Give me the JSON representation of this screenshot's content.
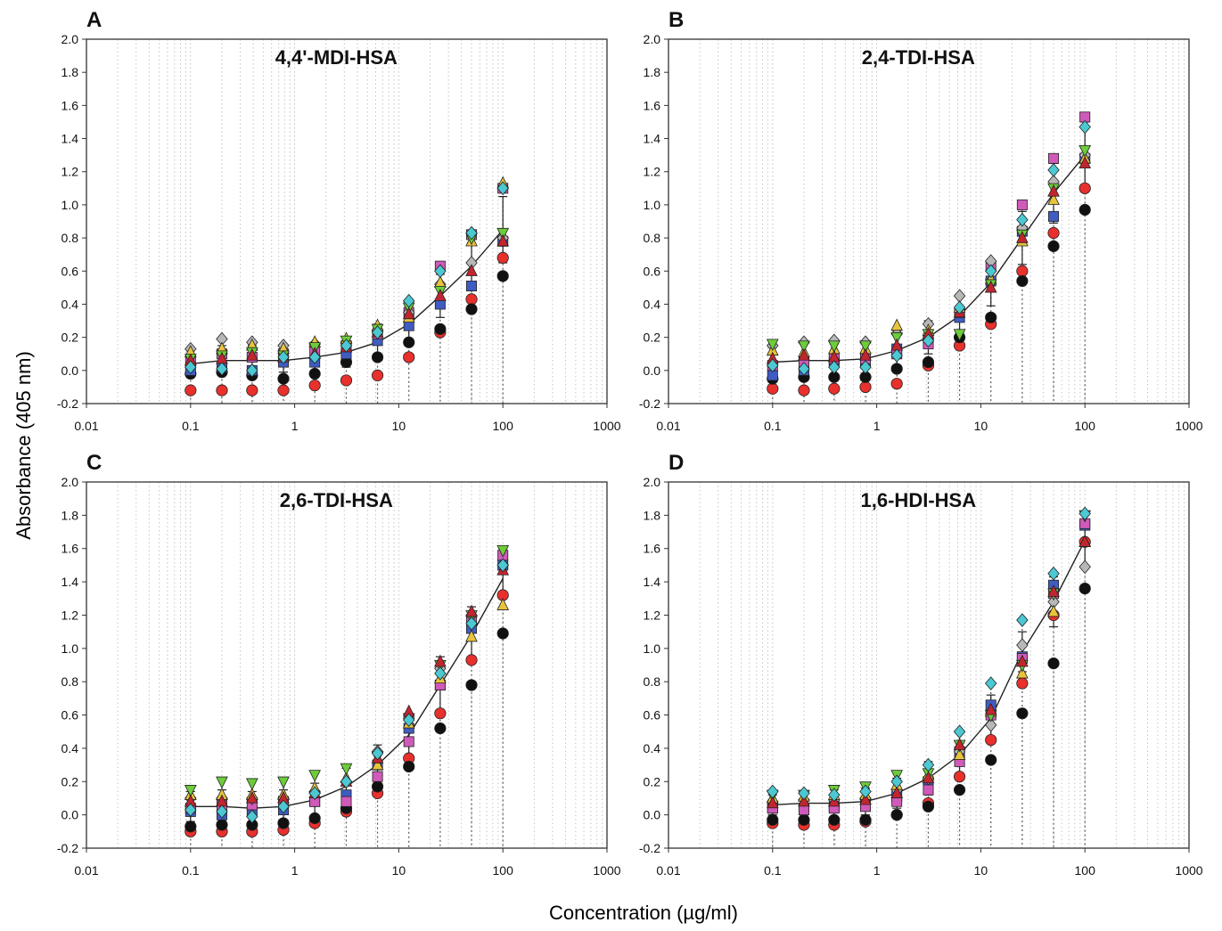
{
  "figure": {
    "ylabel": "Absorbance (405 nm)",
    "xlabel": "Concentration (µg/ml)"
  },
  "chart_data": [
    {
      "panel": "A",
      "type": "scatter",
      "title": "4,4'-MDI-HSA",
      "xscale": "log",
      "xlim": [
        0.01,
        1000
      ],
      "ylim": [
        -0.2,
        2.0
      ],
      "xticks": [
        "0.01",
        "0.1",
        "1",
        "10",
        "100",
        "1000"
      ],
      "yticks": [
        "-0.2",
        "0.0",
        "0.2",
        "0.4",
        "0.6",
        "0.8",
        "1.0",
        "1.2",
        "1.4",
        "1.6",
        "1.8",
        "2.0"
      ],
      "x": [
        0.1,
        0.2,
        0.39,
        0.78,
        1.56,
        3.13,
        6.25,
        12.5,
        25,
        50,
        100
      ],
      "mean": {
        "y": [
          0.04,
          0.06,
          0.06,
          0.06,
          0.08,
          0.11,
          0.17,
          0.28,
          0.45,
          0.63,
          0.85
        ],
        "err": [
          0.08,
          0.09,
          0.09,
          0.07,
          0.09,
          0.09,
          0.11,
          0.11,
          0.13,
          0.14,
          0.2
        ]
      },
      "series": [
        {
          "marker": "circle",
          "color": "#e8302c",
          "values": [
            -0.12,
            -0.12,
            -0.12,
            -0.12,
            -0.09,
            -0.06,
            -0.03,
            0.08,
            0.23,
            0.43,
            0.68
          ]
        },
        {
          "marker": "circle",
          "color": "#111111",
          "values": [
            -0.02,
            -0.01,
            -0.03,
            -0.05,
            -0.02,
            0.05,
            0.08,
            0.17,
            0.25,
            0.37,
            0.57
          ]
        },
        {
          "marker": "square",
          "color": "#3f5cc2",
          "values": [
            0.0,
            0.02,
            0.0,
            0.05,
            0.05,
            0.1,
            0.18,
            0.27,
            0.4,
            0.51,
            0.78
          ]
        },
        {
          "marker": "square",
          "color": "#d05aba",
          "values": [
            0.05,
            0.1,
            0.08,
            0.1,
            0.12,
            0.15,
            0.22,
            0.35,
            0.63,
            0.82,
            1.1
          ]
        },
        {
          "marker": "diamond",
          "color": "#b8b8b8",
          "values": [
            0.13,
            0.19,
            0.17,
            0.15,
            0.16,
            0.17,
            0.24,
            0.35,
            0.52,
            0.65,
            0.8
          ]
        },
        {
          "marker": "triangle-up",
          "color": "#e8c43c",
          "values": [
            0.11,
            0.13,
            0.15,
            0.13,
            0.17,
            0.19,
            0.27,
            0.32,
            0.53,
            0.78,
            1.13
          ]
        },
        {
          "marker": "triangle-down",
          "color": "#6ccc3a",
          "values": [
            0.07,
            0.09,
            0.11,
            0.09,
            0.14,
            0.18,
            0.25,
            0.38,
            0.48,
            0.8,
            0.83
          ]
        },
        {
          "marker": "triangle-up",
          "color": "#c3252f",
          "values": [
            0.06,
            0.07,
            0.09,
            0.08,
            0.1,
            0.14,
            0.23,
            0.34,
            0.45,
            0.6,
            0.78
          ]
        },
        {
          "marker": "diamond",
          "color": "#4cc8d2",
          "values": [
            0.02,
            0.01,
            0.0,
            0.08,
            0.08,
            0.15,
            0.23,
            0.42,
            0.6,
            0.83,
            1.1
          ]
        }
      ]
    },
    {
      "panel": "B",
      "type": "scatter",
      "title": "2,4-TDI-HSA",
      "xscale": "log",
      "xlim": [
        0.01,
        1000
      ],
      "ylim": [
        -0.2,
        2.0
      ],
      "xticks": [
        "0.01",
        "0.1",
        "1",
        "10",
        "100",
        "1000"
      ],
      "yticks": [
        "-0.2",
        "0.0",
        "0.2",
        "0.4",
        "0.6",
        "0.8",
        "1.0",
        "1.2",
        "1.4",
        "1.6",
        "1.8",
        "2.0"
      ],
      "x": [
        0.1,
        0.2,
        0.39,
        0.78,
        1.56,
        3.13,
        6.25,
        12.5,
        25,
        50,
        100
      ],
      "mean": {
        "y": [
          0.05,
          0.06,
          0.06,
          0.07,
          0.12,
          0.2,
          0.33,
          0.53,
          0.8,
          1.07,
          1.3
        ],
        "err": [
          0.09,
          0.1,
          0.1,
          0.1,
          0.12,
          0.1,
          0.13,
          0.14,
          0.16,
          0.18,
          0.2
        ]
      },
      "series": [
        {
          "marker": "circle",
          "color": "#e8302c",
          "values": [
            -0.11,
            -0.12,
            -0.11,
            -0.1,
            -0.08,
            0.03,
            0.15,
            0.28,
            0.6,
            0.83,
            1.1
          ]
        },
        {
          "marker": "circle",
          "color": "#111111",
          "values": [
            -0.05,
            -0.04,
            -0.04,
            -0.04,
            0.01,
            0.05,
            0.2,
            0.32,
            0.54,
            0.75,
            0.97
          ]
        },
        {
          "marker": "square",
          "color": "#3f5cc2",
          "values": [
            -0.03,
            0.0,
            0.05,
            0.05,
            0.13,
            0.18,
            0.32,
            0.54,
            0.84,
            0.93,
            1.28
          ]
        },
        {
          "marker": "square",
          "color": "#d05aba",
          "values": [
            0.03,
            0.05,
            0.07,
            0.07,
            0.1,
            0.16,
            0.35,
            0.63,
            1.0,
            1.28,
            1.53
          ]
        },
        {
          "marker": "diamond",
          "color": "#b8b8b8",
          "values": [
            0.15,
            0.17,
            0.18,
            0.17,
            0.22,
            0.28,
            0.45,
            0.66,
            0.86,
            1.14,
            1.3
          ]
        },
        {
          "marker": "triangle-up",
          "color": "#e8c43c",
          "values": [
            0.12,
            0.11,
            0.13,
            0.13,
            0.27,
            0.24,
            0.38,
            0.55,
            0.78,
            1.03,
            1.28
          ]
        },
        {
          "marker": "triangle-down",
          "color": "#6ccc3a",
          "values": [
            0.16,
            0.15,
            0.15,
            0.15,
            0.2,
            0.22,
            0.22,
            0.52,
            0.82,
            1.1,
            1.33
          ]
        },
        {
          "marker": "triangle-up",
          "color": "#c3252f",
          "values": [
            0.07,
            0.09,
            0.08,
            0.09,
            0.15,
            0.22,
            0.35,
            0.5,
            0.8,
            1.08,
            1.25
          ]
        },
        {
          "marker": "diamond",
          "color": "#4cc8d2",
          "values": [
            0.03,
            0.01,
            0.02,
            0.02,
            0.09,
            0.18,
            0.38,
            0.6,
            0.91,
            1.21,
            1.47
          ]
        }
      ]
    },
    {
      "panel": "C",
      "type": "scatter",
      "title": "2,6-TDI-HSA",
      "xscale": "log",
      "xlim": [
        0.01,
        1000
      ],
      "ylim": [
        -0.2,
        2.0
      ],
      "xticks": [
        "0.01",
        "0.1",
        "1",
        "10",
        "100",
        "1000"
      ],
      "yticks": [
        "-0.2",
        "0.0",
        "0.2",
        "0.4",
        "0.6",
        "0.8",
        "1.0",
        "1.2",
        "1.4",
        "1.6",
        "1.8",
        "2.0"
      ],
      "x": [
        0.1,
        0.2,
        0.39,
        0.78,
        1.56,
        3.13,
        6.25,
        12.5,
        25,
        50,
        100
      ],
      "mean": {
        "y": [
          0.05,
          0.05,
          0.04,
          0.05,
          0.09,
          0.17,
          0.3,
          0.48,
          0.78,
          1.08,
          1.42
        ],
        "err": [
          0.09,
          0.1,
          0.1,
          0.1,
          0.1,
          0.11,
          0.12,
          0.13,
          0.17,
          0.17,
          0.18
        ]
      },
      "series": [
        {
          "marker": "circle",
          "color": "#e8302c",
          "values": [
            -0.1,
            -0.1,
            -0.1,
            -0.09,
            -0.05,
            0.02,
            0.13,
            0.34,
            0.61,
            0.93,
            1.32
          ]
        },
        {
          "marker": "circle",
          "color": "#111111",
          "values": [
            -0.07,
            -0.06,
            -0.06,
            -0.05,
            -0.02,
            0.04,
            0.17,
            0.29,
            0.52,
            0.78,
            1.09
          ]
        },
        {
          "marker": "square",
          "color": "#3f5cc2",
          "values": [
            0.02,
            0.0,
            0.02,
            0.03,
            0.08,
            0.12,
            0.3,
            0.52,
            0.78,
            1.12,
            1.5
          ]
        },
        {
          "marker": "square",
          "color": "#d05aba",
          "values": [
            0.04,
            0.06,
            0.06,
            0.08,
            0.08,
            0.08,
            0.23,
            0.44,
            0.78,
            1.17,
            1.56
          ]
        },
        {
          "marker": "diamond",
          "color": "#b8b8b8",
          "values": [
            0.1,
            0.1,
            0.1,
            0.1,
            0.14,
            0.2,
            0.38,
            0.58,
            0.88,
            1.2,
            1.5
          ]
        },
        {
          "marker": "triangle-up",
          "color": "#e8c43c",
          "values": [
            0.12,
            0.12,
            0.12,
            0.12,
            0.16,
            0.22,
            0.3,
            0.55,
            0.82,
            1.07,
            1.26
          ]
        },
        {
          "marker": "triangle-down",
          "color": "#6ccc3a",
          "values": [
            0.15,
            0.2,
            0.19,
            0.2,
            0.24,
            0.28,
            0.35,
            0.58,
            0.9,
            1.2,
            1.59
          ]
        },
        {
          "marker": "triangle-up",
          "color": "#c3252f",
          "values": [
            0.08,
            0.08,
            0.1,
            0.1,
            0.13,
            0.2,
            0.34,
            0.62,
            0.92,
            1.22,
            1.47
          ]
        },
        {
          "marker": "diamond",
          "color": "#4cc8d2",
          "values": [
            0.03,
            0.02,
            -0.01,
            0.05,
            0.13,
            0.2,
            0.37,
            0.57,
            0.85,
            1.15,
            1.5
          ]
        }
      ]
    },
    {
      "panel": "D",
      "type": "scatter",
      "title": "1,6-HDI-HSA",
      "xscale": "log",
      "xlim": [
        0.01,
        1000
      ],
      "ylim": [
        -0.2,
        2.0
      ],
      "xticks": [
        "0.01",
        "0.1",
        "1",
        "10",
        "100",
        "1000"
      ],
      "yticks": [
        "-0.2",
        "0.0",
        "0.2",
        "0.4",
        "0.6",
        "0.8",
        "1.0",
        "1.2",
        "1.4",
        "1.6",
        "1.8",
        "2.0"
      ],
      "x": [
        0.1,
        0.2,
        0.39,
        0.78,
        1.56,
        3.13,
        6.25,
        12.5,
        25,
        50,
        100
      ],
      "mean": {
        "y": [
          0.06,
          0.07,
          0.07,
          0.08,
          0.13,
          0.22,
          0.36,
          0.58,
          0.98,
          1.28,
          1.65
        ],
        "err": [
          0.06,
          0.07,
          0.08,
          0.08,
          0.09,
          0.1,
          0.13,
          0.14,
          0.12,
          0.15,
          0.16
        ]
      },
      "series": [
        {
          "marker": "circle",
          "color": "#e8302c",
          "values": [
            -0.05,
            -0.06,
            -0.06,
            -0.04,
            0.0,
            0.07,
            0.23,
            0.45,
            0.79,
            1.2,
            1.64
          ]
        },
        {
          "marker": "circle",
          "color": "#111111",
          "values": [
            -0.03,
            -0.03,
            -0.03,
            -0.03,
            0.0,
            0.05,
            0.15,
            0.33,
            0.61,
            0.91,
            1.36
          ]
        },
        {
          "marker": "square",
          "color": "#3f5cc2",
          "values": [
            0.04,
            0.04,
            0.05,
            0.07,
            0.11,
            0.2,
            0.38,
            0.66,
            0.95,
            1.38,
            1.74
          ]
        },
        {
          "marker": "square",
          "color": "#d05aba",
          "values": [
            0.04,
            0.03,
            0.04,
            0.05,
            0.08,
            0.15,
            0.32,
            0.6,
            0.94,
            1.33,
            1.75
          ]
        },
        {
          "marker": "diamond",
          "color": "#b8b8b8",
          "values": [
            0.08,
            0.09,
            0.09,
            0.1,
            0.15,
            0.22,
            0.38,
            0.54,
            1.02,
            1.28,
            1.49
          ]
        },
        {
          "marker": "triangle-up",
          "color": "#e8c43c",
          "values": [
            0.1,
            0.11,
            0.12,
            0.12,
            0.18,
            0.24,
            0.36,
            0.62,
            0.85,
            1.22,
            1.64
          ]
        },
        {
          "marker": "triangle-down",
          "color": "#6ccc3a",
          "values": [
            0.12,
            0.12,
            0.15,
            0.17,
            0.24,
            0.25,
            0.42,
            0.6,
            0.9,
            1.33,
            1.8
          ]
        },
        {
          "marker": "triangle-up",
          "color": "#c3252f",
          "values": [
            0.07,
            0.08,
            0.08,
            0.09,
            0.13,
            0.22,
            0.42,
            0.63,
            0.92,
            1.34,
            1.64
          ]
        },
        {
          "marker": "diamond",
          "color": "#4cc8d2",
          "values": [
            0.14,
            0.13,
            0.12,
            0.14,
            0.2,
            0.3,
            0.5,
            0.79,
            1.17,
            1.45,
            1.81
          ]
        }
      ]
    }
  ]
}
